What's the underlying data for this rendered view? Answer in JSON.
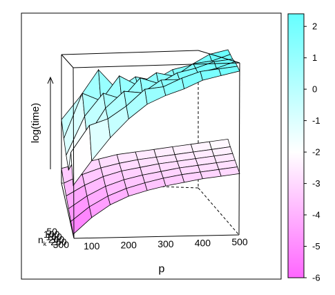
{
  "chart_data": {
    "type": "surface3d",
    "ylabel": "log(time)",
    "xlabel": "p",
    "zaxis_label": "n",
    "zaxis_label_sub": "k",
    "p_ticks": [
      "100",
      "200",
      "300",
      "400",
      "500"
    ],
    "nk_ticks": [
      "50",
      "100",
      "150",
      "200",
      "250",
      "300"
    ],
    "p_values": [
      50,
      100,
      150,
      200,
      250,
      300,
      350,
      400,
      450,
      500
    ],
    "nk_values": [
      50,
      100,
      150,
      200,
      250,
      300
    ],
    "surfaces": [
      {
        "z": [
          [
            -3.2,
            -3.0,
            -2.8,
            -2.6,
            -2.5,
            -2.4,
            -2.3,
            -2.2,
            -2.1,
            -2.0
          ],
          [
            -3.8,
            -3.4,
            -3.1,
            -2.9,
            -2.75,
            -2.65,
            -2.55,
            -2.45,
            -2.35,
            -2.25
          ],
          [
            -4.3,
            -3.8,
            -3.4,
            -3.15,
            -3.0,
            -2.85,
            -2.75,
            -2.65,
            -2.55,
            -2.45
          ],
          [
            -4.8,
            -4.2,
            -3.75,
            -3.45,
            -3.25,
            -3.1,
            -2.95,
            -2.85,
            -2.75,
            -2.65
          ],
          [
            -5.3,
            -4.6,
            -4.1,
            -3.75,
            -3.5,
            -3.3,
            -3.15,
            -3.05,
            -2.95,
            -2.85
          ],
          [
            -5.8,
            -5.0,
            -4.4,
            -4.0,
            -3.75,
            -3.55,
            -3.4,
            -3.25,
            -3.15,
            -3.05
          ]
        ]
      },
      {
        "z": [
          [
            -0.8,
            0.3,
            1.6,
            0.6,
            1.2,
            1.0,
            1.5,
            1.7,
            2.2,
            2.4
          ],
          [
            -1.6,
            0.6,
            0.2,
            1.4,
            0.9,
            1.5,
            1.3,
            1.9,
            2.0,
            2.3
          ],
          [
            -2.3,
            -0.4,
            0.7,
            0.4,
            1.4,
            1.1,
            1.6,
            1.8,
            2.1,
            2.2
          ],
          [
            -2.9,
            -1.3,
            0.1,
            0.9,
            0.8,
            1.4,
            1.4,
            1.7,
            1.9,
            2.2
          ],
          [
            -1.9,
            -0.6,
            -0.3,
            0.3,
            1.1,
            1.2,
            1.6,
            1.9,
            2.0,
            2.1
          ],
          [
            -3.4,
            -2.2,
            -1.1,
            -0.2,
            0.5,
            0.9,
            1.2,
            1.6,
            1.8,
            2.0
          ]
        ]
      }
    ],
    "colorbar": {
      "ticks": [
        "2",
        "1",
        "0",
        "-1",
        "-2",
        "-3",
        "-4",
        "-5",
        "-6"
      ],
      "range": [
        -6,
        2.4
      ],
      "low_color": "#ff66ff",
      "mid_color": "#ffffff",
      "high_color": "#66ffff"
    }
  }
}
